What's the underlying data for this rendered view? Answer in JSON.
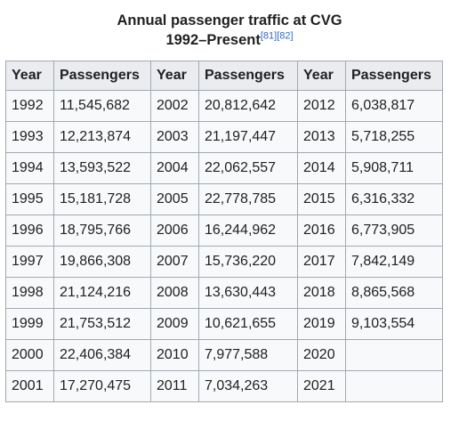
{
  "caption": {
    "line1": "Annual passenger traffic at CVG",
    "line2": "1992–Present",
    "refs": "[81][82]"
  },
  "headers": [
    "Year",
    "Passengers",
    "Year",
    "Passengers",
    "Year",
    "Passengers"
  ],
  "rows": [
    [
      "1992",
      "11,545,682",
      "2002",
      "20,812,642",
      "2012",
      "6,038,817"
    ],
    [
      "1993",
      "12,213,874",
      "2003",
      "21,197,447",
      "2013",
      "5,718,255"
    ],
    [
      "1994",
      "13,593,522",
      "2004",
      "22,062,557",
      "2014",
      "5,908,711"
    ],
    [
      "1995",
      "15,181,728",
      "2005",
      "22,778,785",
      "2015",
      "6,316,332"
    ],
    [
      "1996",
      "18,795,766",
      "2006",
      "16,244,962",
      "2016",
      "6,773,905"
    ],
    [
      "1997",
      "19,866,308",
      "2007",
      "15,736,220",
      "2017",
      "7,842,149"
    ],
    [
      "1998",
      "21,124,216",
      "2008",
      "13,630,443",
      "2018",
      "8,865,568"
    ],
    [
      "1999",
      "21,753,512",
      "2009",
      "10,621,655",
      "2019",
      "9,103,554"
    ],
    [
      "2000",
      "22,406,384",
      "2010",
      "7,977,588",
      "2020",
      ""
    ],
    [
      "2001",
      "17,270,475",
      "2011",
      "7,034,263",
      "2021",
      ""
    ]
  ]
}
